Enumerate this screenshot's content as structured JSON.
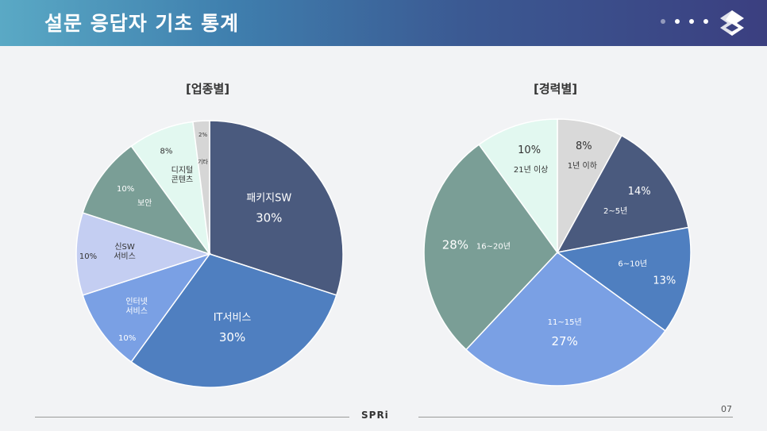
{
  "header": {
    "title": "설문 응답자 기초 통계",
    "colors": {
      "start": "#5aa9c5",
      "end": "#3b3f80"
    }
  },
  "footer": {
    "logo_text": "SPRi",
    "page_number": "07"
  },
  "chart_data": [
    {
      "type": "pie",
      "title": "[업종별]",
      "slices": [
        {
          "label": "패키지SW",
          "value": 30,
          "value_label": "30%",
          "color": "#4a5a7e"
        },
        {
          "label": "IT서비스",
          "value": 30,
          "value_label": "30%",
          "color": "#4f7fc0"
        },
        {
          "label": "인터넷\n서비스",
          "value": 10,
          "value_label": "10%",
          "color": "#7aa0e4"
        },
        {
          "label": "신SW\n서비스",
          "value": 10,
          "value_label": "10%",
          "color": "#c4cef2"
        },
        {
          "label": "보안",
          "value": 10,
          "value_label": "10%",
          "color": "#7a9e96"
        },
        {
          "label": "디지털\n콘텐츠",
          "value": 8,
          "value_label": "8%",
          "color": "#e2f8f0"
        },
        {
          "label": "기타",
          "value": 2,
          "value_label": "2%",
          "color": "#d6d6d6"
        }
      ]
    },
    {
      "type": "pie",
      "title": "[경력별]",
      "slices": [
        {
          "label": "1년 이하",
          "value": 8,
          "value_label": "8%",
          "color": "#d9d9d9"
        },
        {
          "label": "2~5년",
          "value": 14,
          "value_label": "14%",
          "color": "#4a5a7e"
        },
        {
          "label": "6~10년",
          "value": 13,
          "value_label": "13%",
          "color": "#4f7fc0"
        },
        {
          "label": "11~15년",
          "value": 27,
          "value_label": "27%",
          "color": "#7aa0e4"
        },
        {
          "label": "16~20년",
          "value": 28,
          "value_label": "28%",
          "color": "#7a9e96"
        },
        {
          "label": "21년 이상",
          "value": 10,
          "value_label": "10%",
          "color": "#e2f8f0"
        }
      ]
    }
  ]
}
